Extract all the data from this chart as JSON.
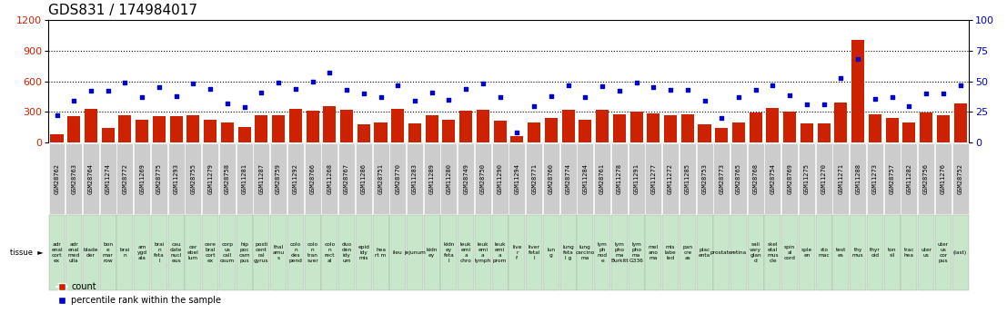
{
  "title": "GDS831 / 174984017",
  "samples": [
    "GSM28762",
    "GSM28763",
    "GSM28764",
    "GSM11274",
    "GSM28772",
    "GSM11269",
    "GSM28775",
    "GSM11293",
    "GSM28755",
    "GSM11279",
    "GSM28758",
    "GSM11281",
    "GSM11287",
    "GSM28759",
    "GSM11292",
    "GSM28766",
    "GSM11268",
    "GSM28767",
    "GSM11286",
    "GSM28751",
    "GSM28770",
    "GSM11283",
    "GSM11289",
    "GSM11280",
    "GSM28749",
    "GSM28750",
    "GSM11290",
    "GSM11294",
    "GSM28771",
    "GSM28760",
    "GSM28774",
    "GSM11284",
    "GSM28761",
    "GSM11278",
    "GSM11291",
    "GSM11277",
    "GSM11272",
    "GSM11285",
    "GSM28753",
    "GSM28773",
    "GSM28765",
    "GSM28768",
    "GSM28754",
    "GSM28769",
    "GSM11275",
    "GSM11270",
    "GSM11271",
    "GSM11288",
    "GSM11273",
    "GSM28757",
    "GSM11282",
    "GSM28756",
    "GSM11276",
    "GSM28752"
  ],
  "tissues": [
    "adr\nenal\ncort\nex",
    "adr\nenal\nmed\nulla",
    "blade\nder",
    "bon\ne\nmar\nrow",
    "brai\nn",
    "am\nygd\nala",
    "brai\nn\nfeta\nl",
    "cau\ndate\nnucl\neus",
    "cer\nebel\nlum",
    "cere\nbral\ncort\nex",
    "corp\nus\ncall\nosum",
    "hip\npoc\ncam\npus",
    "posti\ncent\nral\ngyrus",
    "thal\namu\ns",
    "colo\nn\ndes\npend",
    "colo\nn\ntran\nsver",
    "colo\nn\nrect\nal",
    "duo\nden\nidy\num",
    "epid\nidy\nmis",
    "hea\nrt m",
    "ileu",
    "jejunum",
    "kidn\ney",
    "kidn\ney\nfeta\nl",
    "leuk\nemi\na\nchro",
    "leuk\nemi\na\nlymph",
    "leuk\nemi\na\nprom",
    "live\nr\nf",
    "liver\nfetal\nl",
    "lun\ng",
    "lung\nfeta\nl g",
    "lung\ncarcino\nma",
    "lym\nph\nnod\ne",
    "lym\npho\nma\nBurkitt",
    "lym\npho\nma\nG336",
    "mel\nano\nma",
    "mis\nlabe\nled",
    "pan\ncre\nas",
    "plac\nenta",
    "prostate",
    "retina",
    "sali\nvary\nglan\nd",
    "skel\netal\nmus\ncle",
    "spin\nal\ncord",
    "sple\nen",
    "sto\nmac",
    "test\nes",
    "thy\nmus",
    "thyr\noid",
    "ton\nsil",
    "trac\nhea",
    "uter\nus",
    "uter\nus\ncor\npus",
    "(last)"
  ],
  "tissue_colors": [
    "#c8e6c9",
    "#c8e6c9",
    "#c8e6c9",
    "#c8e6c9",
    "#c8e6c9",
    "#c8e6c9",
    "#c8e6c9",
    "#c8e6c9",
    "#c8e6c9",
    "#c8e6c9",
    "#c8e6c9",
    "#c8e6c9",
    "#c8e6c9",
    "#c8e6c9",
    "#c8e6c9",
    "#c8e6c9",
    "#c8e6c9",
    "#c8e6c9",
    "#c8e6c9",
    "#c8e6c9",
    "#c8e6c9",
    "#c8e6c9",
    "#c8e6c9",
    "#c8e6c9",
    "#c8e6c9",
    "#c8e6c9",
    "#c8e6c9",
    "#c8e6c9",
    "#c8e6c9",
    "#c8e6c9",
    "#c8e6c9",
    "#c8e6c9",
    "#c8e6c9",
    "#c8e6c9",
    "#c8e6c9",
    "#c8e6c9",
    "#c8e6c9",
    "#c8e6c9",
    "#c8e6c9",
    "#c8e6c9",
    "#c8e6c9",
    "#c8e6c9",
    "#c8e6c9",
    "#c8e6c9",
    "#c8e6c9",
    "#c8e6c9",
    "#c8e6c9",
    "#c8e6c9",
    "#c8e6c9",
    "#c8e6c9",
    "#c8e6c9",
    "#c8e6c9",
    "#c8e6c9",
    "#c8e6c9"
  ],
  "counts": [
    80,
    260,
    330,
    140,
    270,
    220,
    260,
    255,
    265,
    220,
    200,
    155,
    270,
    265,
    330,
    310,
    360,
    320,
    180,
    200,
    330,
    185,
    265,
    225,
    310,
    320,
    215,
    60,
    195,
    240,
    320,
    225,
    320,
    280,
    300,
    285,
    265,
    280,
    175,
    140,
    200,
    290,
    340,
    300,
    185,
    185,
    390,
    1010,
    280,
    245,
    200,
    290,
    270,
    380
  ],
  "percentiles": [
    22,
    34,
    42,
    42,
    49,
    37,
    45,
    38,
    48,
    44,
    32,
    29,
    41,
    49,
    44,
    50,
    57,
    43,
    40,
    37,
    47,
    34,
    41,
    35,
    44,
    48,
    37,
    8,
    30,
    38,
    47,
    37,
    46,
    42,
    49,
    45,
    43,
    43,
    34,
    20,
    37,
    43,
    47,
    39,
    31,
    31,
    53,
    68,
    36,
    37,
    30,
    40,
    40,
    47
  ],
  "ylim_left": [
    0,
    1200
  ],
  "ylim_right": [
    0,
    100
  ],
  "yticks_left": [
    0,
    300,
    600,
    900,
    1200
  ],
  "yticks_right": [
    0,
    25,
    50,
    75,
    100
  ],
  "bar_color": "#cc2200",
  "dot_color": "#0000cc",
  "bg_color": "#ffffff",
  "legend_count": "count",
  "legend_pct": "percentile rank within the sample",
  "title_fontsize": 11,
  "gsm_fontsize": 5.0,
  "tissue_fontsize": 4.2,
  "ytick_fontsize": 8,
  "gsm_box_color": "#cccccc",
  "gsm_box_edge": "#999999"
}
